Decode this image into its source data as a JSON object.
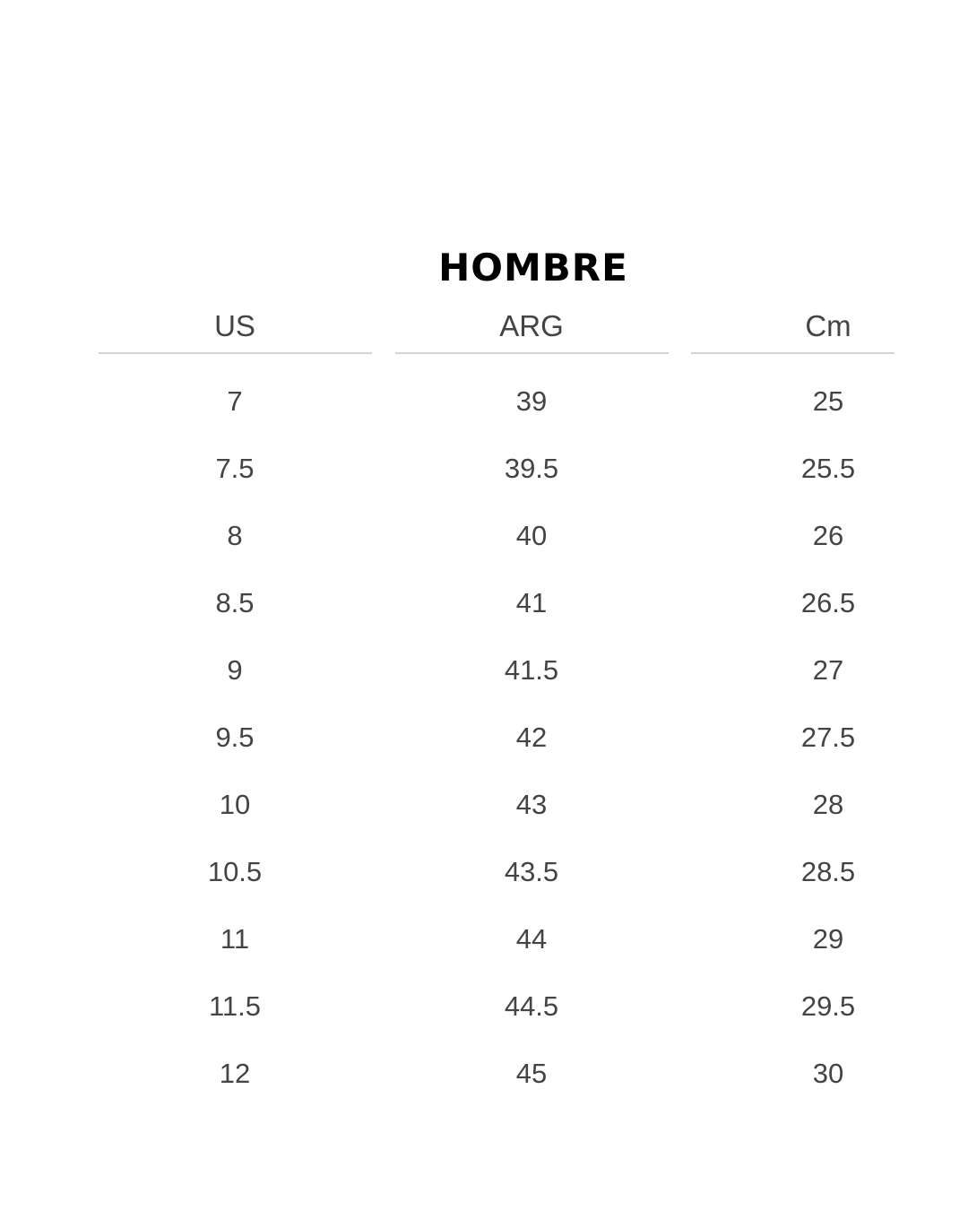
{
  "title": "HOMBRE",
  "columns": [
    "US",
    "ARG",
    "Cm"
  ],
  "rows": [
    [
      "7",
      "39",
      "25"
    ],
    [
      "7.5",
      "39.5",
      "25.5"
    ],
    [
      "8",
      "40",
      "26"
    ],
    [
      "8.5",
      "41",
      "26.5"
    ],
    [
      "9",
      "41.5",
      "27"
    ],
    [
      "9.5",
      "42",
      "27.5"
    ],
    [
      "10",
      "43",
      "28"
    ],
    [
      "10.5",
      "43.5",
      "28.5"
    ],
    [
      "11",
      "44",
      "29"
    ],
    [
      "11.5",
      "44.5",
      "29.5"
    ],
    [
      "12",
      "45",
      "30"
    ]
  ]
}
